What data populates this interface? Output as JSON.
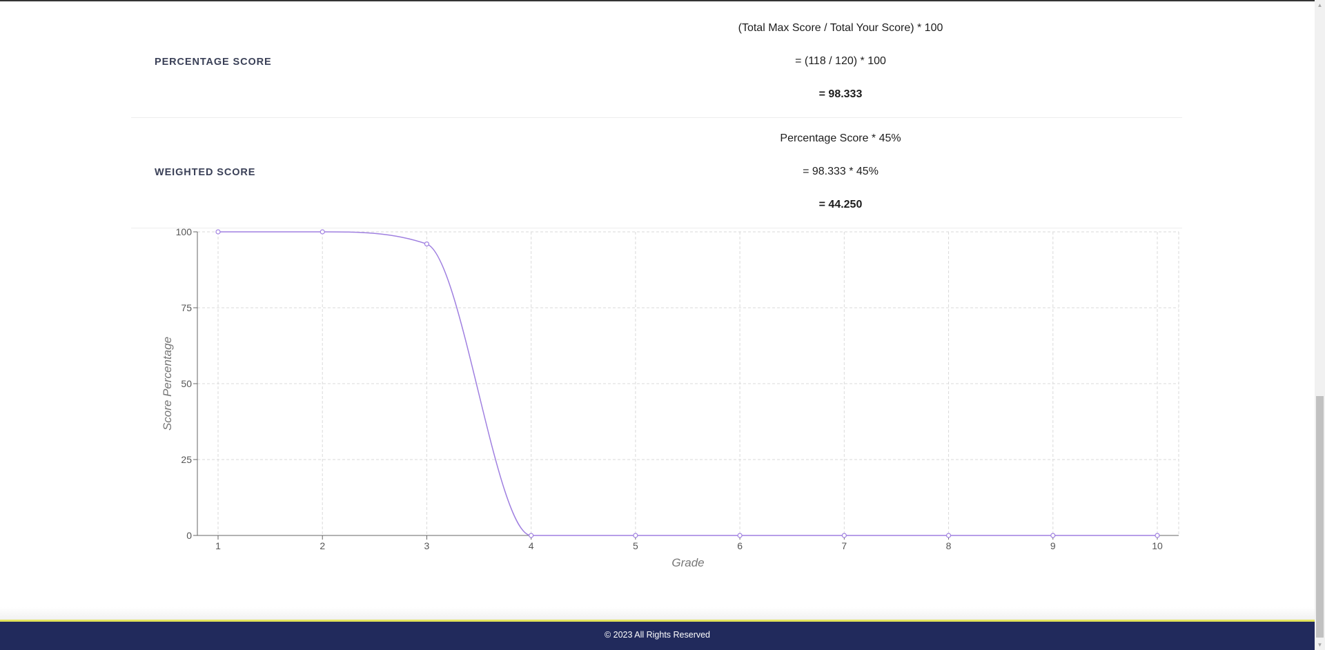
{
  "percentage_score": {
    "label": "PERCENTAGE SCORE",
    "formula": "(Total Max Score / Total Your Score) * 100",
    "substitution": "= (118 / 120) * 100",
    "result": "= 98.333"
  },
  "weighted_score": {
    "label": "WEIGHTED SCORE",
    "formula": "Percentage Score * 45%",
    "substitution": "= 98.333 * 45%",
    "result": "= 44.250"
  },
  "chart_data": {
    "type": "line",
    "x": [
      1,
      2,
      3,
      4,
      5,
      6,
      7,
      8,
      9,
      10
    ],
    "y": [
      100,
      100,
      96,
      0,
      0,
      0,
      0,
      0,
      0,
      0
    ],
    "xlabel": "Grade",
    "ylabel": "Score Percentage",
    "xticks": [
      "1",
      "2",
      "3",
      "4",
      "5",
      "6",
      "7",
      "8",
      "9",
      "10"
    ],
    "yticks": [
      "0",
      "25",
      "50",
      "75",
      "100"
    ],
    "ylim": [
      0,
      100
    ],
    "grid": true,
    "line_color": "#9f7fe0",
    "smooth": true
  },
  "footer": {
    "copyright": "© 2023 All Rights Reserved"
  },
  "colors": {
    "footer_bg": "#212a5c",
    "footer_accent": "#e2e35a",
    "label_color": "#3a4057"
  }
}
